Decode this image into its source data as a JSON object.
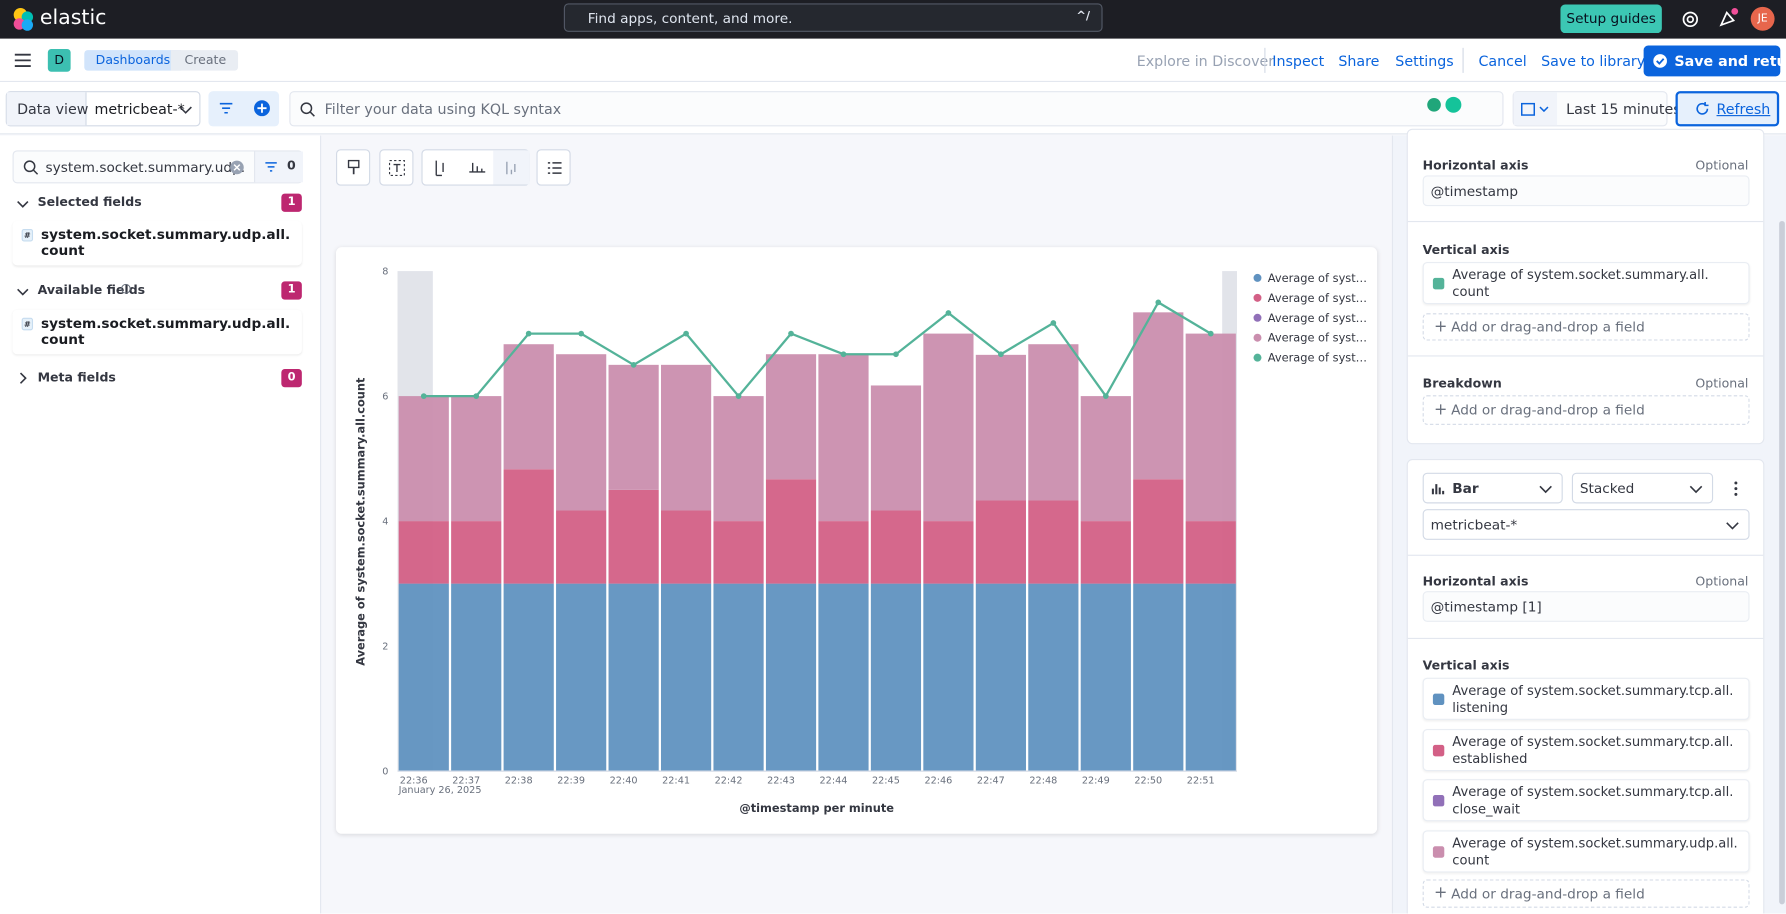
{
  "header": {
    "brand": "elastic",
    "search_placeholder": "Find apps, content, and more.",
    "search_shortcut": "^/",
    "setup_guides": "Setup guides",
    "avatar": "JE"
  },
  "toolbar": {
    "space": "D",
    "breadcrumbs": [
      "Dashboards",
      "Create"
    ],
    "explore": "Explore in Discover",
    "inspect": "Inspect",
    "share": "Share",
    "settings": "Settings",
    "cancel": "Cancel",
    "save_library": "Save to library",
    "save_return": "Save and return"
  },
  "query_bar": {
    "data_view_label": "Data view",
    "data_view": "metricbeat-*",
    "placeholder": "Filter your data using KQL syntax",
    "time_range": "Last 15 minutes",
    "refresh": "Refresh"
  },
  "sidebar": {
    "search": "system.socket.summary.udp.",
    "filter_count": 0,
    "sections": [
      {
        "title": "Selected fields",
        "count": 1,
        "fields": [
          "system.socket.summary.udp.all.count"
        ]
      },
      {
        "title": "Available fields",
        "count": 1,
        "fields": [
          "system.socket.summary.udp.all.count"
        ]
      },
      {
        "title": "Meta fields",
        "count": 0,
        "fields": []
      }
    ]
  },
  "chart_data": {
    "type": "bar",
    "stacked": true,
    "ylabel": "Average of system.socket.summary.all.count",
    "xlabel": "@timestamp per minute",
    "date_label": "January 26, 2025",
    "categories": [
      "22:36",
      "22:37",
      "22:38",
      "22:39",
      "22:40",
      "22:41",
      "22:42",
      "22:43",
      "22:44",
      "22:45",
      "22:46",
      "22:47",
      "22:48",
      "22:49",
      "22:50",
      "22:51"
    ],
    "ylim": [
      0,
      8
    ],
    "yticks": [
      0,
      2,
      4,
      6,
      8
    ],
    "grid": false,
    "legend": "right",
    "series": [
      {
        "name": "Average of syst…",
        "color": "#6092c0",
        "values": [
          3,
          3,
          3,
          3,
          3,
          3,
          3,
          3,
          3,
          3,
          3,
          3,
          3,
          3,
          3,
          3
        ]
      },
      {
        "name": "Average of syst…",
        "color": "#d36086",
        "values": [
          1,
          1,
          1.83,
          1.17,
          1.5,
          1.17,
          1,
          1.67,
          1,
          1.17,
          1,
          1.33,
          1.33,
          1,
          1.67,
          1
        ]
      },
      {
        "name": "Average of syst…",
        "color": "#9170b8",
        "values": [
          0,
          0,
          0,
          0,
          0,
          0,
          0,
          0,
          0,
          0,
          0,
          0,
          0,
          0,
          0,
          0
        ]
      },
      {
        "name": "Average of syst…",
        "color": "#ca8eae",
        "values": [
          2,
          2,
          2,
          2.5,
          2,
          2.33,
          2,
          2,
          2.67,
          2,
          3,
          2.33,
          2.5,
          2,
          2.67,
          3
        ]
      },
      {
        "name": "Average of syst…",
        "color": "#54b399",
        "type": "line",
        "values": [
          6,
          6,
          7,
          7,
          6.5,
          7,
          6,
          7,
          6.67,
          6.67,
          7.33,
          6.67,
          7.17,
          6,
          7.5,
          7
        ]
      }
    ]
  },
  "config": {
    "layer1": {
      "h_axis": "Horizontal axis",
      "optional": "Optional",
      "h_field": "@timestamp",
      "v_axis": "Vertical axis",
      "v_fields": [
        "Average of system.socket.summary.all. count"
      ],
      "add": "Add or drag-and-drop a field",
      "breakdown": "Breakdown",
      "optional2": "Optional",
      "add2": "Add or drag-and-drop a field"
    },
    "layer2": {
      "chart_type": "Bar",
      "mode": "Stacked",
      "data_view": "metricbeat-*",
      "h_axis": "Horizontal axis",
      "optional": "Optional",
      "h_field": "@timestamp [1]",
      "v_axis": "Vertical axis",
      "v_fields": [
        "Average of system.socket.summary.tcp.all. listening",
        "Average of system.socket.summary.tcp.all. established",
        "Average of system.socket.summary.tcp.all. close_wait",
        "Average of system.socket.summary.udp.all. count"
      ],
      "add": "Add or drag-and-drop a field"
    }
  }
}
